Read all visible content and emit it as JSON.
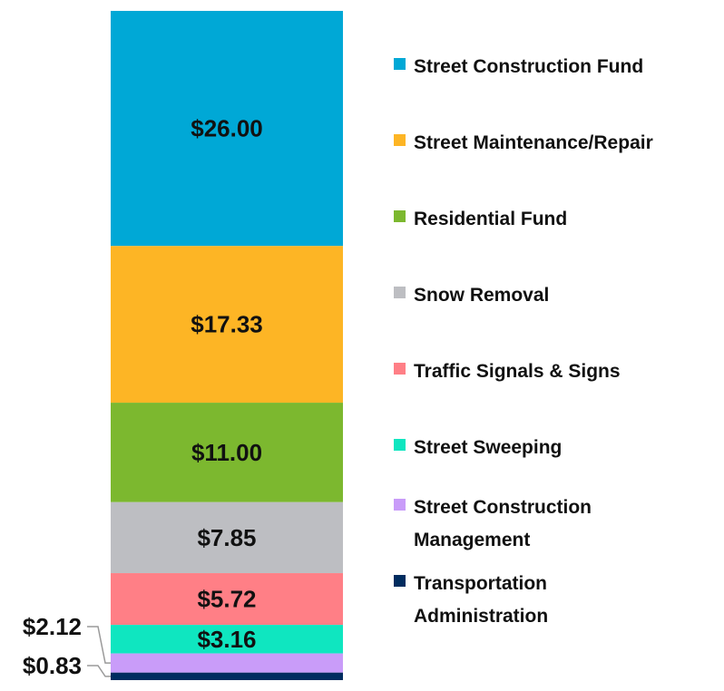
{
  "chart_data": {
    "type": "bar",
    "stacked": true,
    "categories": [
      ""
    ],
    "series": [
      {
        "name": "Street Construction Fund",
        "value": 26.0,
        "label": "$26.00",
        "color": "#00A8D6"
      },
      {
        "name": "Street Maintenance/Repair",
        "value": 17.33,
        "label": "$17.33",
        "color": "#FDB525"
      },
      {
        "name": "Residential Fund",
        "value": 11.0,
        "label": "$11.00",
        "color": "#7CB82F"
      },
      {
        "name": "Snow Removal",
        "value": 7.85,
        "label": "$7.85",
        "color": "#BDBEC2"
      },
      {
        "name": "Traffic Signals & Signs",
        "value": 5.72,
        "label": "$5.72",
        "color": "#FF7F86"
      },
      {
        "name": "Street Sweeping",
        "value": 3.16,
        "label": "$3.16",
        "color": "#0FE6C0"
      },
      {
        "name": "Street Construction Management",
        "legend_lines": [
          "Street Construction",
          "Management"
        ],
        "value": 2.12,
        "label": "$2.12",
        "color": "#C99CF9"
      },
      {
        "name": "Transportation Administration",
        "legend_lines": [
          "Transportation",
          "Administration"
        ],
        "value": 0.83,
        "label": "$0.83",
        "color": "#002C5F"
      }
    ],
    "legend_position": "right",
    "grid": false
  }
}
